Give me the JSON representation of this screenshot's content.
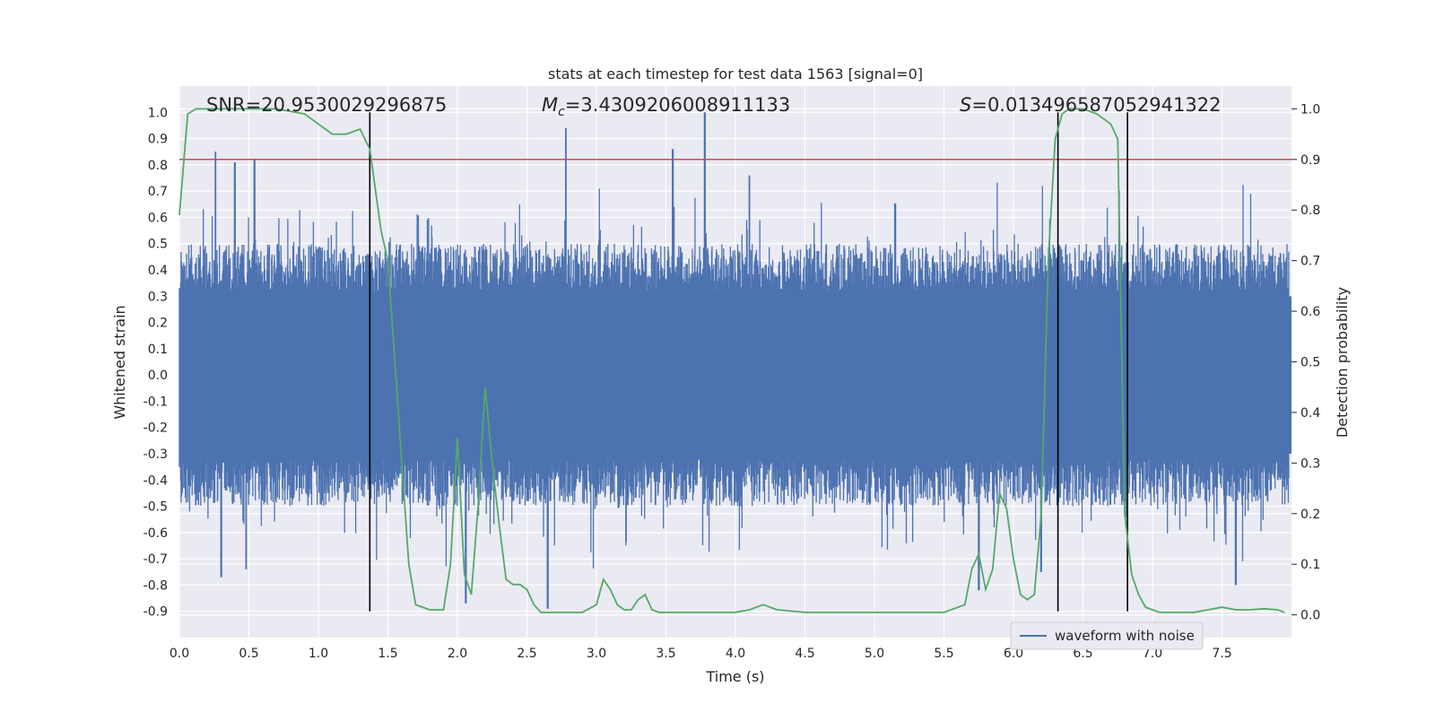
{
  "chart_data": {
    "type": "line",
    "title": "stats at each timestep for test data 1563 [signal=0]",
    "xlabel": "Time (s)",
    "ylabel_left": "Whitened strain",
    "ylabel_right": "Detection probability",
    "xlim": [
      0,
      8
    ],
    "ylim_left": [
      -1.0,
      1.1
    ],
    "ylim_right": [
      -0.045,
      1.045
    ],
    "x_ticks": [
      "0.0",
      "0.5",
      "1.0",
      "1.5",
      "2.0",
      "2.5",
      "3.0",
      "3.5",
      "4.0",
      "4.5",
      "5.0",
      "5.5",
      "6.0",
      "6.5",
      "7.0",
      "7.5"
    ],
    "y_ticks_left": [
      "1.0",
      "0.9",
      "0.8",
      "0.7",
      "0.6",
      "0.5",
      "0.4",
      "0.3",
      "0.2",
      "0.1",
      "0.0",
      "-0.1",
      "-0.2",
      "-0.3",
      "-0.4",
      "-0.5",
      "-0.6",
      "-0.7",
      "-0.8",
      "-0.9"
    ],
    "y_ticks_right": [
      "1.0",
      "0.9",
      "0.8",
      "0.7",
      "0.6",
      "0.5",
      "0.4",
      "0.3",
      "0.2",
      "0.1",
      "0.0"
    ],
    "annotations": {
      "snr": "SNR=20.9530029296875",
      "mc_symbol": "M",
      "mc_sub": "c",
      "mc_value": "=3.4309206008911133",
      "s_symbol": "S",
      "s_value": "=0.01349658705294132​2"
    },
    "threshold": {
      "value": 0.9,
      "axis": "right",
      "color": "#c44e52"
    },
    "vlines_x": [
      1.37,
      6.32,
      6.82
    ],
    "legend": {
      "label": "waveform with noise",
      "placement": "lower right"
    },
    "series": [
      {
        "name": "waveform with noise",
        "axis": "left",
        "color": "#4c72b0",
        "envelope": {
          "core_half_width": 0.3,
          "max_positive": 1.0,
          "min_negative": -0.89,
          "peaks": [
            [
              0.26,
              0.85
            ],
            [
              0.4,
              0.81
            ],
            [
              0.54,
              0.82
            ],
            [
              2.78,
              0.94
            ],
            [
              3.55,
              0.86
            ],
            [
              3.78,
              1.0
            ],
            [
              4.1,
              0.76
            ],
            [
              0.3,
              -0.77
            ],
            [
              0.48,
              -0.74
            ],
            [
              2.06,
              -0.87
            ],
            [
              2.65,
              -0.89
            ],
            [
              5.75,
              -0.82
            ],
            [
              6.2,
              -0.75
            ],
            [
              7.6,
              -0.8
            ]
          ]
        }
      },
      {
        "name": "detection probability",
        "axis": "right",
        "color": "#55a868",
        "x": [
          0,
          0.06,
          0.12,
          0.3,
          0.5,
          0.7,
          0.9,
          1.0,
          1.05,
          1.1,
          1.15,
          1.2,
          1.3,
          1.37,
          1.45,
          1.5,
          1.55,
          1.6,
          1.65,
          1.7,
          1.8,
          1.9,
          1.95,
          2.0,
          2.05,
          2.1,
          2.15,
          2.2,
          2.25,
          2.3,
          2.35,
          2.4,
          2.45,
          2.5,
          2.55,
          2.6,
          2.65,
          2.7,
          2.8,
          2.9,
          3.0,
          3.05,
          3.1,
          3.15,
          3.2,
          3.25,
          3.3,
          3.35,
          3.4,
          3.45,
          3.5,
          3.6,
          3.8,
          4.0,
          4.1,
          4.2,
          4.3,
          4.5,
          4.7,
          4.9,
          5.1,
          5.3,
          5.5,
          5.65,
          5.7,
          5.75,
          5.8,
          5.85,
          5.9,
          5.95,
          6.0,
          6.05,
          6.1,
          6.15,
          6.2,
          6.25,
          6.3,
          6.35,
          6.4,
          6.45,
          6.5,
          6.6,
          6.7,
          6.75,
          6.8,
          6.85,
          6.9,
          6.95,
          7.0,
          7.05,
          7.1,
          7.2,
          7.3,
          7.4,
          7.5,
          7.6,
          7.7,
          7.8,
          7.9,
          7.95
        ],
        "y": [
          0.79,
          0.99,
          1.0,
          1.0,
          1.0,
          1.0,
          0.99,
          0.97,
          0.96,
          0.95,
          0.95,
          0.95,
          0.96,
          0.92,
          0.76,
          0.7,
          0.5,
          0.3,
          0.1,
          0.02,
          0.01,
          0.01,
          0.1,
          0.35,
          0.08,
          0.04,
          0.22,
          0.45,
          0.3,
          0.18,
          0.07,
          0.06,
          0.06,
          0.05,
          0.02,
          0.005,
          0.005,
          0.005,
          0.005,
          0.005,
          0.02,
          0.07,
          0.05,
          0.02,
          0.01,
          0.01,
          0.03,
          0.04,
          0.01,
          0.005,
          0.005,
          0.005,
          0.005,
          0.005,
          0.01,
          0.02,
          0.01,
          0.005,
          0.005,
          0.005,
          0.005,
          0.005,
          0.005,
          0.02,
          0.09,
          0.12,
          0.05,
          0.09,
          0.24,
          0.21,
          0.11,
          0.04,
          0.03,
          0.04,
          0.2,
          0.7,
          0.94,
          0.99,
          1.0,
          1.0,
          1.0,
          0.99,
          0.97,
          0.94,
          0.2,
          0.08,
          0.04,
          0.015,
          0.01,
          0.005,
          0.005,
          0.005,
          0.005,
          0.01,
          0.015,
          0.01,
          0.01,
          0.012,
          0.01,
          0.005
        ]
      }
    ]
  }
}
